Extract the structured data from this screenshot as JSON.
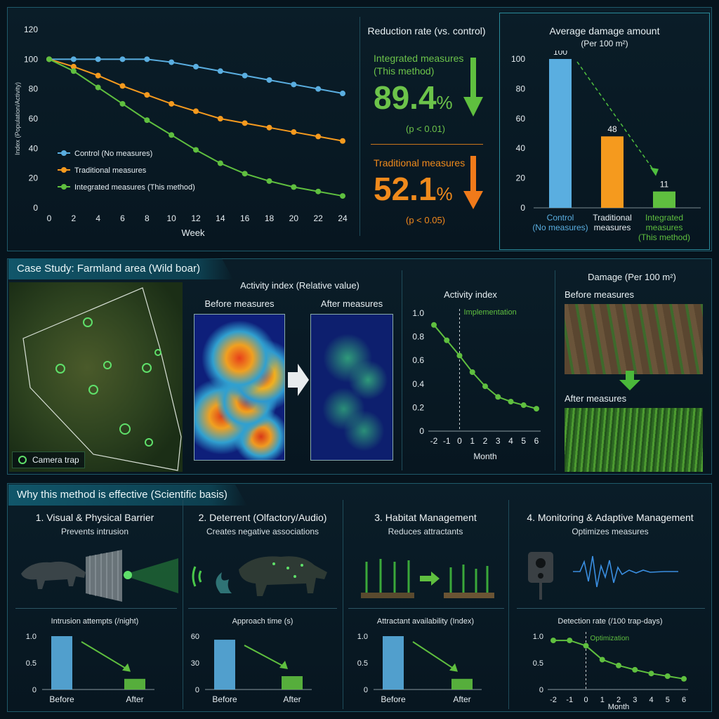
{
  "top_line": {
    "ylabel": "Index (Population/Activity)",
    "xlabel": "Week",
    "legend": [
      "Control (No measures)",
      "Traditional measures",
      "Integrated measures (This method)"
    ]
  },
  "reduction": {
    "title": "Reduction rate (vs. control)",
    "integrated_label_1": "Integrated measures",
    "integrated_label_2": "(This method)",
    "integrated_value": "89.4",
    "integrated_unit": "%",
    "integrated_p": "(p < 0.01)",
    "traditional_label": "Traditional measures",
    "traditional_value": "52.1",
    "traditional_unit": "%",
    "traditional_p": "(p < 0.05)"
  },
  "damage_chart": {
    "title": "Average damage amount",
    "subtitle": "(Per 100 m²)",
    "value_labels": [
      "100",
      "48",
      "11"
    ],
    "cat_lines": [
      [
        "Control",
        "(No measures)"
      ],
      [
        "Traditional",
        "measures"
      ],
      [
        "Integrated",
        "measures",
        "(This method)"
      ]
    ]
  },
  "case": {
    "banner": "Case Study: Farmland area (Wild boar)",
    "camera_trap": "Camera trap",
    "heat_title": "Activity index (Relative value)",
    "before": "Before measures",
    "after": "After measures",
    "activity_title": "Activity index",
    "implementation": "Implementation",
    "month": "Month",
    "damage_title": "Damage (Per 100 m²)",
    "before_measures": "Before measures",
    "after_measures": "After measures"
  },
  "why": {
    "banner": "Why this method is effective (Scientific basis)",
    "cols": [
      {
        "title": "1. Visual & Physical Barrier",
        "sub": "Prevents intrusion",
        "chart_title": "Intrusion attempts (/night)"
      },
      {
        "title": "2. Deterrent (Olfactory/Audio)",
        "sub": "Creates negative associations",
        "chart_title": "Approach time (s)"
      },
      {
        "title": "3. Habitat Management",
        "sub": "Reduces attractants",
        "chart_title": "Attractant availability (Index)"
      },
      {
        "title": "4. Monitoring & Adaptive Management",
        "sub": "Optimizes measures",
        "chart_title": "Detection rate (/100 trap-days)",
        "annotation": "Optimization",
        "xlabel": "Month"
      }
    ]
  },
  "colors": {
    "control": "#5aaee0",
    "traditional": "#f59a1e",
    "integrated": "#5fbf3f",
    "panel_border": "#1f5a6a"
  },
  "chart_data": [
    {
      "type": "line",
      "x": [
        0,
        2,
        4,
        6,
        8,
        10,
        12,
        14,
        16,
        18,
        20,
        22,
        24
      ],
      "series": [
        {
          "name": "Control (No measures)",
          "values": [
            100,
            100,
            100,
            100,
            100,
            98,
            95,
            92,
            89,
            86,
            83,
            80,
            77
          ]
        },
        {
          "name": "Traditional measures",
          "values": [
            100,
            95,
            89,
            82,
            76,
            70,
            65,
            60,
            57,
            54,
            51,
            48,
            45
          ]
        },
        {
          "name": "Integrated measures (This method)",
          "values": [
            100,
            92,
            81,
            70,
            59,
            49,
            39,
            30,
            23,
            18,
            14,
            11,
            8
          ]
        }
      ],
      "xlabel": "Week",
      "ylabel": "Index (Population/Activity)",
      "xticks": [
        "0",
        "2",
        "4",
        "6",
        "8",
        "10",
        "12",
        "14",
        "16",
        "18",
        "20",
        "22",
        "24"
      ],
      "yticks": [
        "0",
        "20",
        "40",
        "60",
        "80",
        "100",
        "120"
      ],
      "ylim": [
        0,
        120
      ],
      "legend": "lower-left",
      "grid": false
    },
    {
      "type": "bar",
      "title": "Average damage amount",
      "categories": [
        "Control (No measures)",
        "Traditional measures",
        "Integrated measures (This method)"
      ],
      "values": [
        100,
        48,
        11
      ],
      "yticks": [
        "0",
        "20",
        "40",
        "60",
        "80",
        "100"
      ],
      "ylim": [
        0,
        100
      ]
    },
    {
      "type": "line",
      "title": "Activity index",
      "x": [
        -2,
        -1,
        0,
        1,
        2,
        3,
        4,
        5,
        6
      ],
      "series": [
        {
          "values": [
            0.9,
            0.77,
            0.64,
            0.5,
            0.38,
            0.29,
            0.25,
            0.22,
            0.19
          ]
        }
      ],
      "xlabel": "Month",
      "xticks": [
        "-2",
        "-1",
        "0",
        "1",
        "2",
        "3",
        "4",
        "5",
        "6"
      ],
      "yticks": [
        "0",
        "0.2",
        "0.4",
        "0.6",
        "0.8",
        "1.0"
      ],
      "ylim": [
        0,
        1.0
      ],
      "annotation": "Implementation"
    },
    {
      "type": "bar",
      "title": "Intrusion attempts (/night)",
      "categories": [
        "Before",
        "After"
      ],
      "values": [
        1.0,
        0.2
      ],
      "yticks": [
        "0",
        "0.5",
        "1.0"
      ],
      "ylim": [
        0,
        1.0
      ]
    },
    {
      "type": "bar",
      "title": "Approach time (s)",
      "categories": [
        "Before",
        "After"
      ],
      "values": [
        56,
        15
      ],
      "yticks": [
        "0",
        "30",
        "60"
      ],
      "ylim": [
        0,
        60
      ]
    },
    {
      "type": "bar",
      "title": "Attractant availability (Index)",
      "categories": [
        "Before",
        "After"
      ],
      "values": [
        1.0,
        0.2
      ],
      "yticks": [
        "0",
        "0.5",
        "1.0"
      ],
      "ylim": [
        0,
        1.0
      ]
    },
    {
      "type": "line",
      "title": "Detection rate (/100 trap-days)",
      "x": [
        -2,
        -1,
        0,
        1,
        2,
        3,
        4,
        5,
        6
      ],
      "series": [
        {
          "values": [
            0.92,
            0.92,
            0.82,
            0.56,
            0.45,
            0.37,
            0.3,
            0.25,
            0.2
          ]
        }
      ],
      "xlabel": "Month",
      "xticks": [
        "-2",
        "-1",
        "0",
        "1",
        "2",
        "3",
        "4",
        "5",
        "6"
      ],
      "yticks": [
        "0",
        "0.5",
        "1.0"
      ],
      "ylim": [
        0,
        1.0
      ],
      "annotation": "Optimization"
    }
  ]
}
